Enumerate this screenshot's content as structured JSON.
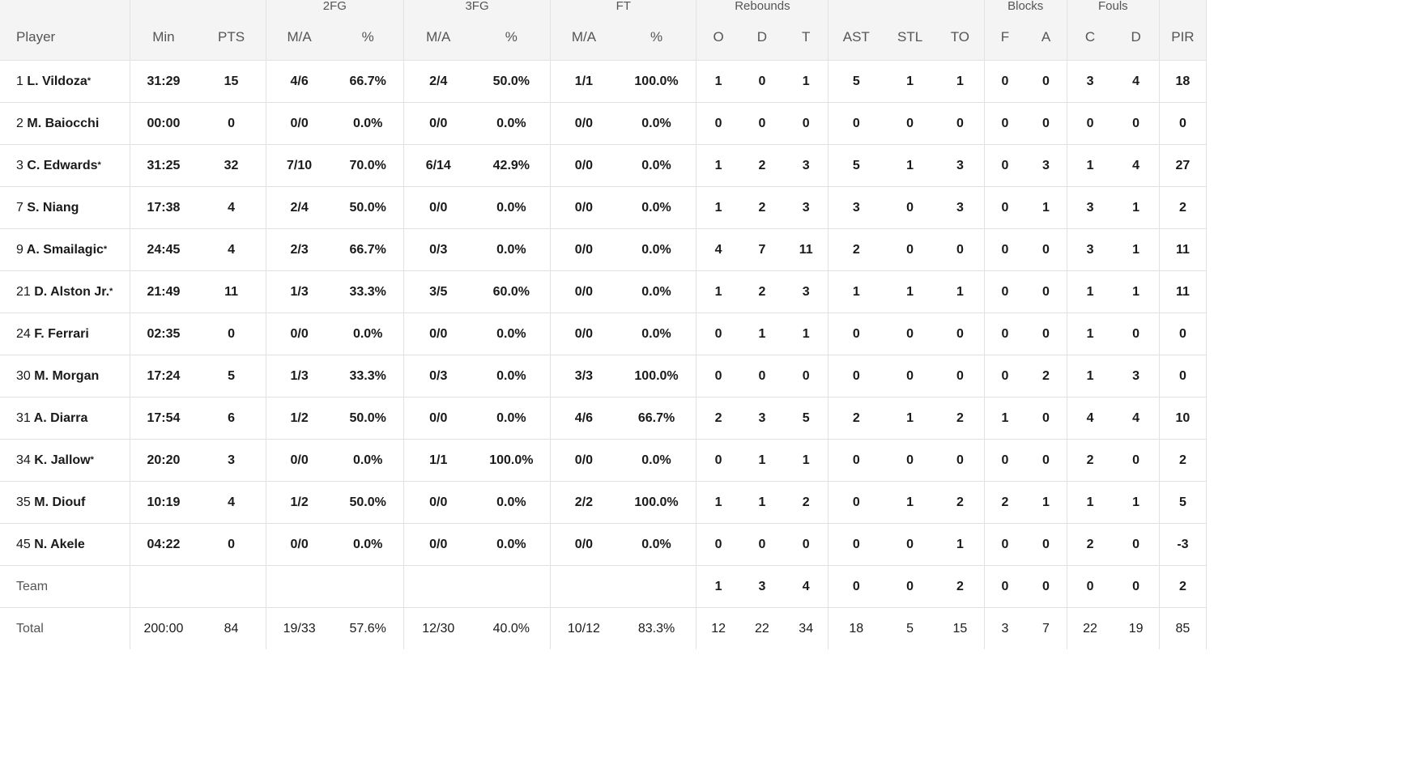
{
  "groups": {
    "fg2": "2FG",
    "fg3": "3FG",
    "ft": "FT",
    "rebounds": "Rebounds",
    "blocks": "Blocks",
    "fouls": "Fouls"
  },
  "columns": {
    "player": "Player",
    "min": "Min",
    "pts": "PTS",
    "fg2_ma": "M/A",
    "fg2_pct": "%",
    "fg3_ma": "M/A",
    "fg3_pct": "%",
    "ft_ma": "M/A",
    "ft_pct": "%",
    "reb_o": "O",
    "reb_d": "D",
    "reb_t": "T",
    "ast": "AST",
    "stl": "STL",
    "to": "TO",
    "blk_f": "F",
    "blk_a": "A",
    "foul_c": "C",
    "foul_d": "D",
    "pir": "PIR"
  },
  "rows": [
    {
      "num": "1",
      "name": "L. Vildoza",
      "star": "*",
      "min": "31:29",
      "pts": "15",
      "fg2_ma": "4/6",
      "fg2_pct": "66.7%",
      "fg3_ma": "2/4",
      "fg3_pct": "50.0%",
      "ft_ma": "1/1",
      "ft_pct": "100.0%",
      "reb_o": "1",
      "reb_d": "0",
      "reb_t": "1",
      "ast": "5",
      "stl": "1",
      "to": "1",
      "blk_f": "0",
      "blk_a": "0",
      "foul_c": "3",
      "foul_d": "4",
      "pir": "18"
    },
    {
      "num": "2",
      "name": "M. Baiocchi",
      "star": "",
      "min": "00:00",
      "pts": "0",
      "fg2_ma": "0/0",
      "fg2_pct": "0.0%",
      "fg3_ma": "0/0",
      "fg3_pct": "0.0%",
      "ft_ma": "0/0",
      "ft_pct": "0.0%",
      "reb_o": "0",
      "reb_d": "0",
      "reb_t": "0",
      "ast": "0",
      "stl": "0",
      "to": "0",
      "blk_f": "0",
      "blk_a": "0",
      "foul_c": "0",
      "foul_d": "0",
      "pir": "0"
    },
    {
      "num": "3",
      "name": "C. Edwards",
      "star": "*",
      "min": "31:25",
      "pts": "32",
      "fg2_ma": "7/10",
      "fg2_pct": "70.0%",
      "fg3_ma": "6/14",
      "fg3_pct": "42.9%",
      "ft_ma": "0/0",
      "ft_pct": "0.0%",
      "reb_o": "1",
      "reb_d": "2",
      "reb_t": "3",
      "ast": "5",
      "stl": "1",
      "to": "3",
      "blk_f": "0",
      "blk_a": "3",
      "foul_c": "1",
      "foul_d": "4",
      "pir": "27"
    },
    {
      "num": "7",
      "name": "S. Niang",
      "star": "",
      "min": "17:38",
      "pts": "4",
      "fg2_ma": "2/4",
      "fg2_pct": "50.0%",
      "fg3_ma": "0/0",
      "fg3_pct": "0.0%",
      "ft_ma": "0/0",
      "ft_pct": "0.0%",
      "reb_o": "1",
      "reb_d": "2",
      "reb_t": "3",
      "ast": "3",
      "stl": "0",
      "to": "3",
      "blk_f": "0",
      "blk_a": "1",
      "foul_c": "3",
      "foul_d": "1",
      "pir": "2"
    },
    {
      "num": "9",
      "name": "A. Smailagic",
      "star": "*",
      "min": "24:45",
      "pts": "4",
      "fg2_ma": "2/3",
      "fg2_pct": "66.7%",
      "fg3_ma": "0/3",
      "fg3_pct": "0.0%",
      "ft_ma": "0/0",
      "ft_pct": "0.0%",
      "reb_o": "4",
      "reb_d": "7",
      "reb_t": "11",
      "ast": "2",
      "stl": "0",
      "to": "0",
      "blk_f": "0",
      "blk_a": "0",
      "foul_c": "3",
      "foul_d": "1",
      "pir": "11"
    },
    {
      "num": "21",
      "name": "D. Alston Jr.",
      "star": "*",
      "min": "21:49",
      "pts": "11",
      "fg2_ma": "1/3",
      "fg2_pct": "33.3%",
      "fg3_ma": "3/5",
      "fg3_pct": "60.0%",
      "ft_ma": "0/0",
      "ft_pct": "0.0%",
      "reb_o": "1",
      "reb_d": "2",
      "reb_t": "3",
      "ast": "1",
      "stl": "1",
      "to": "1",
      "blk_f": "0",
      "blk_a": "0",
      "foul_c": "1",
      "foul_d": "1",
      "pir": "11"
    },
    {
      "num": "24",
      "name": "F. Ferrari",
      "star": "",
      "min": "02:35",
      "pts": "0",
      "fg2_ma": "0/0",
      "fg2_pct": "0.0%",
      "fg3_ma": "0/0",
      "fg3_pct": "0.0%",
      "ft_ma": "0/0",
      "ft_pct": "0.0%",
      "reb_o": "0",
      "reb_d": "1",
      "reb_t": "1",
      "ast": "0",
      "stl": "0",
      "to": "0",
      "blk_f": "0",
      "blk_a": "0",
      "foul_c": "1",
      "foul_d": "0",
      "pir": "0"
    },
    {
      "num": "30",
      "name": "M. Morgan",
      "star": "",
      "min": "17:24",
      "pts": "5",
      "fg2_ma": "1/3",
      "fg2_pct": "33.3%",
      "fg3_ma": "0/3",
      "fg3_pct": "0.0%",
      "ft_ma": "3/3",
      "ft_pct": "100.0%",
      "reb_o": "0",
      "reb_d": "0",
      "reb_t": "0",
      "ast": "0",
      "stl": "0",
      "to": "0",
      "blk_f": "0",
      "blk_a": "2",
      "foul_c": "1",
      "foul_d": "3",
      "pir": "0"
    },
    {
      "num": "31",
      "name": "A. Diarra",
      "star": "",
      "min": "17:54",
      "pts": "6",
      "fg2_ma": "1/2",
      "fg2_pct": "50.0%",
      "fg3_ma": "0/0",
      "fg3_pct": "0.0%",
      "ft_ma": "4/6",
      "ft_pct": "66.7%",
      "reb_o": "2",
      "reb_d": "3",
      "reb_t": "5",
      "ast": "2",
      "stl": "1",
      "to": "2",
      "blk_f": "1",
      "blk_a": "0",
      "foul_c": "4",
      "foul_d": "4",
      "pir": "10"
    },
    {
      "num": "34",
      "name": "K. Jallow",
      "star": "*",
      "min": "20:20",
      "pts": "3",
      "fg2_ma": "0/0",
      "fg2_pct": "0.0%",
      "fg3_ma": "1/1",
      "fg3_pct": "100.0%",
      "ft_ma": "0/0",
      "ft_pct": "0.0%",
      "reb_o": "0",
      "reb_d": "1",
      "reb_t": "1",
      "ast": "0",
      "stl": "0",
      "to": "0",
      "blk_f": "0",
      "blk_a": "0",
      "foul_c": "2",
      "foul_d": "0",
      "pir": "2"
    },
    {
      "num": "35",
      "name": "M. Diouf",
      "star": "",
      "min": "10:19",
      "pts": "4",
      "fg2_ma": "1/2",
      "fg2_pct": "50.0%",
      "fg3_ma": "0/0",
      "fg3_pct": "0.0%",
      "ft_ma": "2/2",
      "ft_pct": "100.0%",
      "reb_o": "1",
      "reb_d": "1",
      "reb_t": "2",
      "ast": "0",
      "stl": "1",
      "to": "2",
      "blk_f": "2",
      "blk_a": "1",
      "foul_c": "1",
      "foul_d": "1",
      "pir": "5"
    },
    {
      "num": "45",
      "name": "N. Akele",
      "star": "",
      "min": "04:22",
      "pts": "0",
      "fg2_ma": "0/0",
      "fg2_pct": "0.0%",
      "fg3_ma": "0/0",
      "fg3_pct": "0.0%",
      "ft_ma": "0/0",
      "ft_pct": "0.0%",
      "reb_o": "0",
      "reb_d": "0",
      "reb_t": "0",
      "ast": "0",
      "stl": "0",
      "to": "1",
      "blk_f": "0",
      "blk_a": "0",
      "foul_c": "2",
      "foul_d": "0",
      "pir": "-3"
    }
  ],
  "team": {
    "label": "Team",
    "min": "",
    "pts": "",
    "fg2_ma": "",
    "fg2_pct": "",
    "fg3_ma": "",
    "fg3_pct": "",
    "ft_ma": "",
    "ft_pct": "",
    "reb_o": "1",
    "reb_d": "3",
    "reb_t": "4",
    "ast": "0",
    "stl": "0",
    "to": "2",
    "blk_f": "0",
    "blk_a": "0",
    "foul_c": "0",
    "foul_d": "0",
    "pir": "2"
  },
  "total": {
    "label": "Total",
    "min": "200:00",
    "pts": "84",
    "fg2_ma": "19/33",
    "fg2_pct": "57.6%",
    "fg3_ma": "12/30",
    "fg3_pct": "40.0%",
    "ft_ma": "10/12",
    "ft_pct": "83.3%",
    "reb_o": "12",
    "reb_d": "22",
    "reb_t": "34",
    "ast": "18",
    "stl": "5",
    "to": "15",
    "blk_f": "3",
    "blk_a": "7",
    "foul_c": "22",
    "foul_d": "19",
    "pir": "85"
  }
}
